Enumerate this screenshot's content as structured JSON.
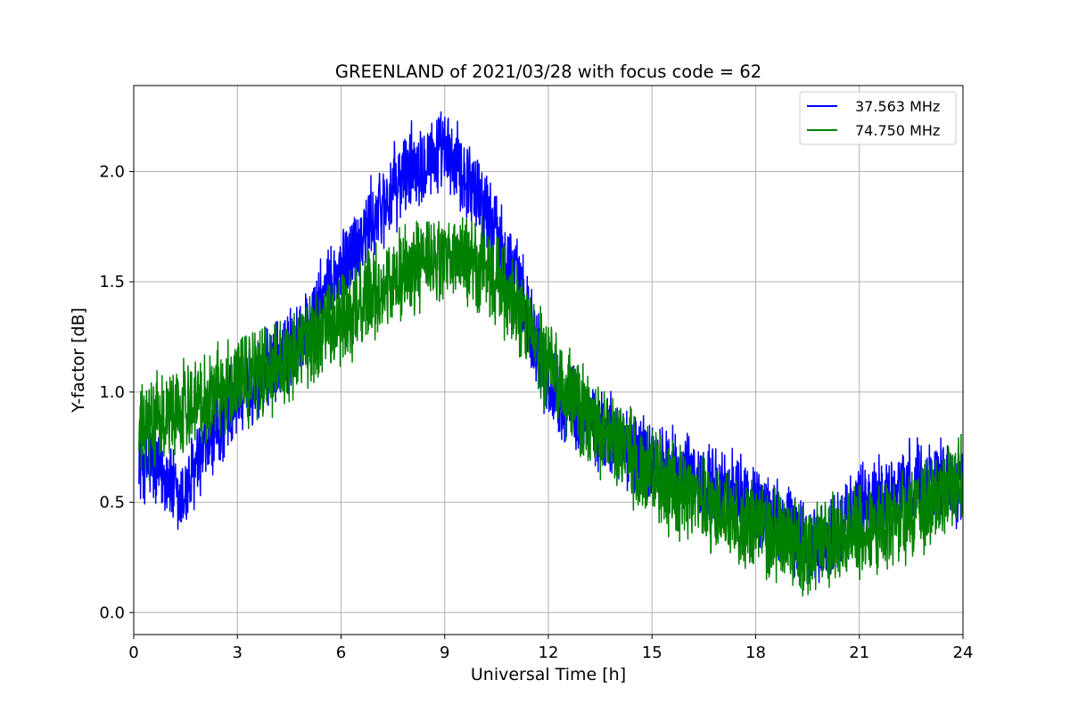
{
  "chart_data": {
    "type": "line",
    "title": "GREENLAND of 2021/03/28 with focus code = 62",
    "xlabel": "Universal Time [h]",
    "ylabel": "Y-factor [dB]",
    "xlim": [
      0,
      24
    ],
    "ylim": [
      -0.1,
      2.39
    ],
    "xticks": [
      0,
      3,
      6,
      9,
      12,
      15,
      18,
      21,
      24
    ],
    "xtick_labels": [
      "0",
      "3",
      "6",
      "9",
      "12",
      "15",
      "18",
      "21",
      "24"
    ],
    "yticks": [
      0.0,
      0.5,
      1.0,
      1.5,
      2.0
    ],
    "ytick_labels": [
      "0.0",
      "0.5",
      "1.0",
      "1.5",
      "2.0"
    ],
    "grid": true,
    "legend_position": "top-right",
    "series": [
      {
        "name": "37.563 MHz",
        "color": "#0000ff",
        "x": [
          0.15,
          1,
          1.3,
          2,
          3,
          4,
          5,
          6,
          7,
          8,
          8.5,
          9,
          9.5,
          10,
          11,
          12,
          13,
          14,
          15,
          16,
          17,
          18,
          19,
          19.5,
          20,
          21,
          22,
          23,
          24
        ],
        "values": [
          0.7,
          0.62,
          0.48,
          0.72,
          0.98,
          1.1,
          1.28,
          1.55,
          1.8,
          2.02,
          2.07,
          2.08,
          2.0,
          1.9,
          1.55,
          1.05,
          0.88,
          0.78,
          0.68,
          0.62,
          0.56,
          0.48,
          0.38,
          0.3,
          0.3,
          0.48,
          0.55,
          0.6,
          0.58
        ],
        "noise": 0.22
      },
      {
        "name": "74.750 MHz",
        "color": "#008000",
        "x": [
          0.15,
          1,
          2,
          3,
          4,
          5,
          6,
          7,
          8,
          9,
          10,
          11,
          12,
          13,
          14,
          15,
          16,
          17,
          18,
          19,
          19.5,
          20,
          21,
          22,
          23,
          24
        ],
        "values": [
          0.8,
          0.9,
          0.98,
          1.05,
          1.12,
          1.22,
          1.33,
          1.45,
          1.56,
          1.6,
          1.58,
          1.4,
          1.1,
          0.9,
          0.75,
          0.62,
          0.53,
          0.45,
          0.38,
          0.32,
          0.3,
          0.32,
          0.38,
          0.42,
          0.5,
          0.6
        ],
        "noise": 0.24
      }
    ]
  }
}
